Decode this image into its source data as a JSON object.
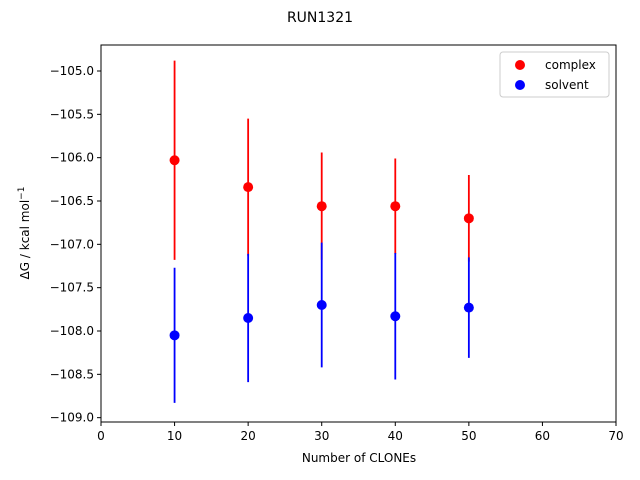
{
  "chart_data": {
    "type": "scatter",
    "title": "RUN1321",
    "xlabel": "Number of CLONEs",
    "ylabel_main": "ΔG / kcal mol",
    "ylabel_sup": "−1",
    "xlim": [
      0,
      70
    ],
    "ylim": [
      -109.05,
      -104.7
    ],
    "xticks": [
      0,
      10,
      20,
      30,
      40,
      50,
      60,
      70
    ],
    "xtick_labels": [
      "0",
      "10",
      "20",
      "30",
      "40",
      "50",
      "60",
      "70"
    ],
    "yticks": [
      -105.0,
      -105.5,
      -106.0,
      -106.5,
      -107.0,
      -107.5,
      -108.0,
      -108.5,
      -109.0
    ],
    "ytick_labels": [
      "−105.0",
      "−105.5",
      "−106.0",
      "−106.5",
      "−107.0",
      "−107.5",
      "−108.0",
      "−108.5",
      "−109.0"
    ],
    "grid": false,
    "legend_position": "top-right",
    "series": [
      {
        "name": "complex",
        "color": "#ff0000",
        "x": [
          10,
          20,
          30,
          40,
          50
        ],
        "y": [
          -106.03,
          -106.34,
          -106.56,
          -106.56,
          -106.7
        ],
        "yerr": [
          1.15,
          0.79,
          0.62,
          0.55,
          0.5
        ]
      },
      {
        "name": "solvent",
        "color": "#0000ff",
        "x": [
          10,
          20,
          30,
          40,
          50
        ],
        "y": [
          -108.05,
          -107.85,
          -107.7,
          -107.83,
          -107.73
        ],
        "yerr": [
          0.78,
          0.74,
          0.72,
          0.73,
          0.58
        ]
      }
    ]
  }
}
